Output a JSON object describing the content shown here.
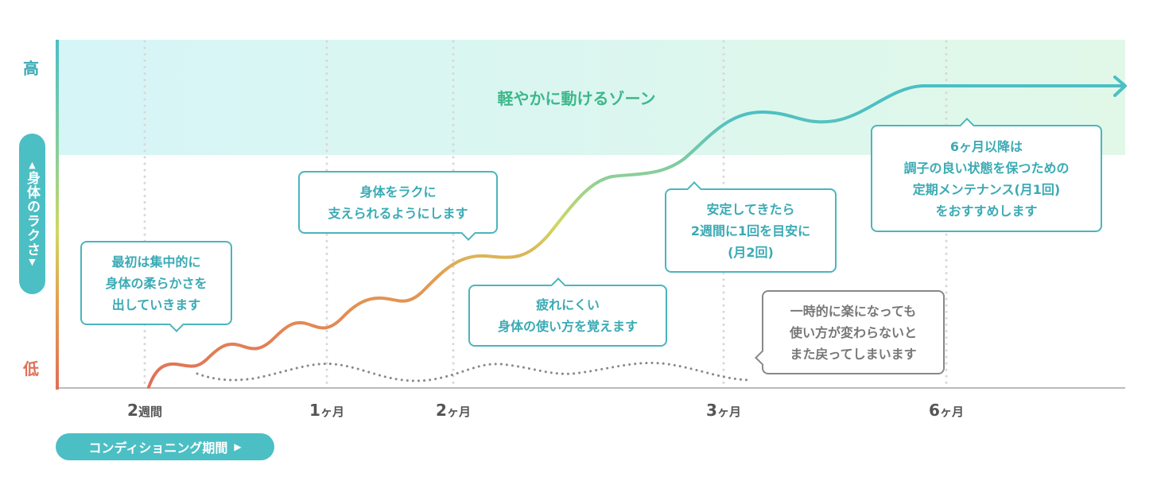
{
  "y_axis": {
    "high": "高",
    "low": "低",
    "label": "身体のラクさ",
    "up_arrow": "▲",
    "down_arrow": "▼"
  },
  "x_axis": {
    "ticks": [
      {
        "num": "2",
        "unit": "週間"
      },
      {
        "num": "1",
        "unit": "ヶ月"
      },
      {
        "num": "2",
        "unit": "ヶ月"
      },
      {
        "num": "3",
        "unit": "ヶ月"
      },
      {
        "num": "6",
        "unit": "ヶ月"
      }
    ],
    "period_label": "コンディショニング期間",
    "period_arrow": "▶"
  },
  "zone_label": "軽やかに動けるゾーン",
  "callouts": [
    {
      "lines": [
        "最初は集中的に",
        "身体の柔らかさを",
        "出していきます"
      ]
    },
    {
      "lines": [
        "身体をラクに",
        "支えられるようにします"
      ]
    },
    {
      "lines": [
        "疲れにくい",
        "身体の使い方を覚えます"
      ]
    },
    {
      "lines": [
        "安定してきたら",
        "2週間に1回を目安に",
        "(月2回)"
      ]
    },
    {
      "lines": [
        "6ヶ月以降は",
        "調子の良い状態を保つための",
        "定期メンテナンス(月1回)",
        "をおすすめします"
      ]
    },
    {
      "lines": [
        "一時的に楽になっても",
        "使い方が変わらないと",
        "また戻ってしまいます"
      ]
    }
  ],
  "colors": {
    "teal": "#4bbfc4",
    "zone_text": "#3cb88a",
    "low": "#e07058",
    "mid": "#e3a050",
    "yellow": "#cfd860",
    "gray": "#888888"
  }
}
